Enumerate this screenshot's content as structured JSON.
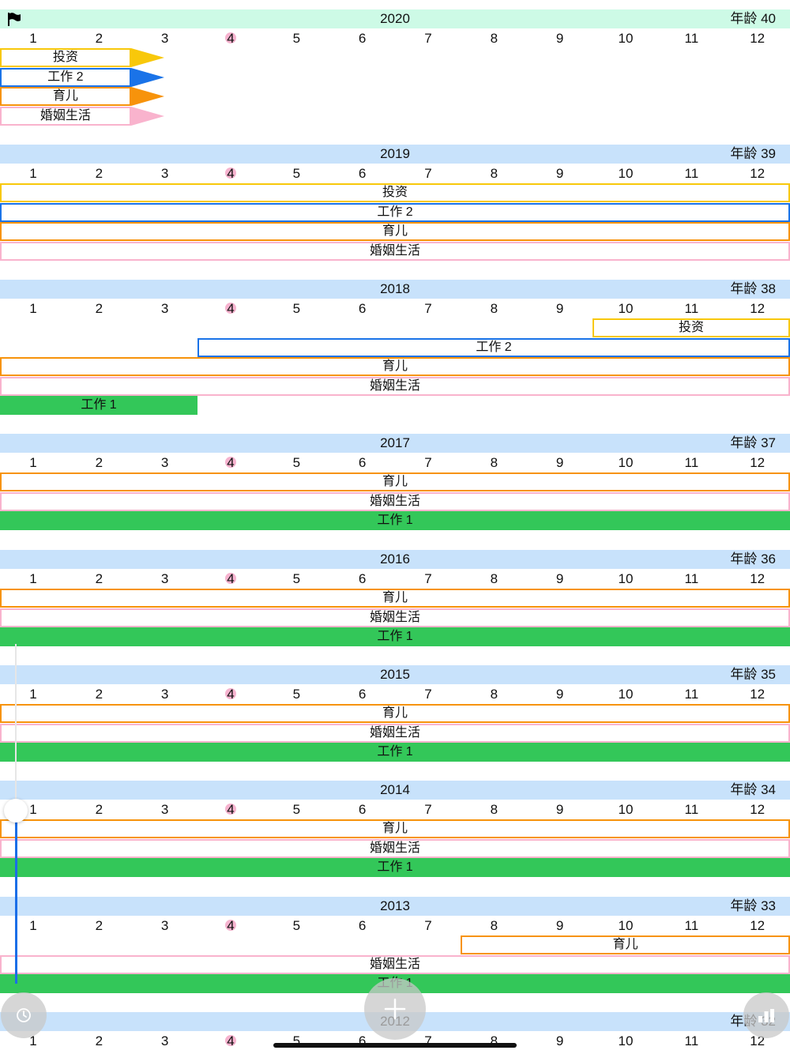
{
  "app": {
    "screen": "life-timeline"
  },
  "colors": {
    "current_year_header": "#cdfae6",
    "year_header": "#c8e2fb",
    "today_marker": "#f6b3cf",
    "scrub_fill": "#1a6ee8"
  },
  "icons": {
    "current_year": "flag-icon",
    "left_action": "clock-icon",
    "add_action": "plus-icon",
    "right_action": "bar-chart-icon"
  },
  "months": [
    "1",
    "2",
    "3",
    "4",
    "5",
    "6",
    "7",
    "8",
    "9",
    "10",
    "11",
    "12"
  ],
  "today_month": "4",
  "age_prefix": "年龄",
  "years": [
    {
      "year": "2020",
      "age": "40",
      "current": true,
      "bars": [
        {
          "label": "投资",
          "color": "#f8c80a",
          "start_month": 1,
          "end_month": 2,
          "style": "outline",
          "arrow": true
        },
        {
          "label": "工作 2",
          "color": "#1a73e8",
          "start_month": 1,
          "end_month": 2,
          "style": "outline",
          "arrow": true
        },
        {
          "label": "育儿",
          "color": "#f7930b",
          "start_month": 1,
          "end_month": 2,
          "style": "outline",
          "arrow": true
        },
        {
          "label": "婚姻生活",
          "color": "#f9b3cd",
          "start_month": 1,
          "end_month": 2,
          "style": "outline",
          "arrow": true
        }
      ]
    },
    {
      "year": "2019",
      "age": "39",
      "current": false,
      "bars": [
        {
          "label": "投资",
          "color": "#f8c80a",
          "start_month": 1,
          "end_month": 12,
          "style": "outline"
        },
        {
          "label": "工作 2",
          "color": "#1a73e8",
          "start_month": 1,
          "end_month": 12,
          "style": "outline"
        },
        {
          "label": "育儿",
          "color": "#f7930b",
          "start_month": 1,
          "end_month": 12,
          "style": "outline"
        },
        {
          "label": "婚姻生活",
          "color": "#f9b3cd",
          "start_month": 1,
          "end_month": 12,
          "style": "outline"
        }
      ]
    },
    {
      "year": "2018",
      "age": "38",
      "current": false,
      "bars": [
        {
          "label": "投资",
          "color": "#f8c80a",
          "start_month": 10,
          "end_month": 12,
          "style": "outline"
        },
        {
          "label": "工作 2",
          "color": "#1a73e8",
          "start_month": 4,
          "end_month": 12,
          "style": "outline"
        },
        {
          "label": "育儿",
          "color": "#f7930b",
          "start_month": 1,
          "end_month": 12,
          "style": "outline"
        },
        {
          "label": "婚姻生活",
          "color": "#f9b3cd",
          "start_month": 1,
          "end_month": 12,
          "style": "outline"
        },
        {
          "label": "工作 1",
          "color": "#33c759",
          "start_month": 1,
          "end_month": 3,
          "style": "filled"
        }
      ]
    },
    {
      "year": "2017",
      "age": "37",
      "current": false,
      "bars": [
        {
          "label": "育儿",
          "color": "#f7930b",
          "start_month": 1,
          "end_month": 12,
          "style": "outline"
        },
        {
          "label": "婚姻生活",
          "color": "#f9b3cd",
          "start_month": 1,
          "end_month": 12,
          "style": "outline"
        },
        {
          "label": "工作 1",
          "color": "#33c759",
          "start_month": 1,
          "end_month": 12,
          "style": "filled"
        }
      ]
    },
    {
      "year": "2016",
      "age": "36",
      "current": false,
      "bars": [
        {
          "label": "育儿",
          "color": "#f7930b",
          "start_month": 1,
          "end_month": 12,
          "style": "outline"
        },
        {
          "label": "婚姻生活",
          "color": "#f9b3cd",
          "start_month": 1,
          "end_month": 12,
          "style": "outline"
        },
        {
          "label": "工作 1",
          "color": "#33c759",
          "start_month": 1,
          "end_month": 12,
          "style": "filled"
        }
      ]
    },
    {
      "year": "2015",
      "age": "35",
      "current": false,
      "bars": [
        {
          "label": "育儿",
          "color": "#f7930b",
          "start_month": 1,
          "end_month": 12,
          "style": "outline"
        },
        {
          "label": "婚姻生活",
          "color": "#f9b3cd",
          "start_month": 1,
          "end_month": 12,
          "style": "outline"
        },
        {
          "label": "工作 1",
          "color": "#33c759",
          "start_month": 1,
          "end_month": 12,
          "style": "filled"
        }
      ]
    },
    {
      "year": "2014",
      "age": "34",
      "current": false,
      "bars": [
        {
          "label": "育儿",
          "color": "#f7930b",
          "start_month": 1,
          "end_month": 12,
          "style": "outline"
        },
        {
          "label": "婚姻生活",
          "color": "#f9b3cd",
          "start_month": 1,
          "end_month": 12,
          "style": "outline"
        },
        {
          "label": "工作 1",
          "color": "#33c759",
          "start_month": 1,
          "end_month": 12,
          "style": "filled"
        }
      ]
    },
    {
      "year": "2013",
      "age": "33",
      "current": false,
      "bars": [
        {
          "label": "育儿",
          "color": "#f7930b",
          "start_month": 8,
          "end_month": 12,
          "style": "outline"
        },
        {
          "label": "婚姻生活",
          "color": "#f9b3cd",
          "start_month": 1,
          "end_month": 12,
          "style": "outline"
        },
        {
          "label": "工作 1",
          "color": "#33c759",
          "start_month": 1,
          "end_month": 12,
          "style": "filled"
        }
      ]
    },
    {
      "year": "2012",
      "age": "32",
      "current": false,
      "bars": []
    }
  ]
}
